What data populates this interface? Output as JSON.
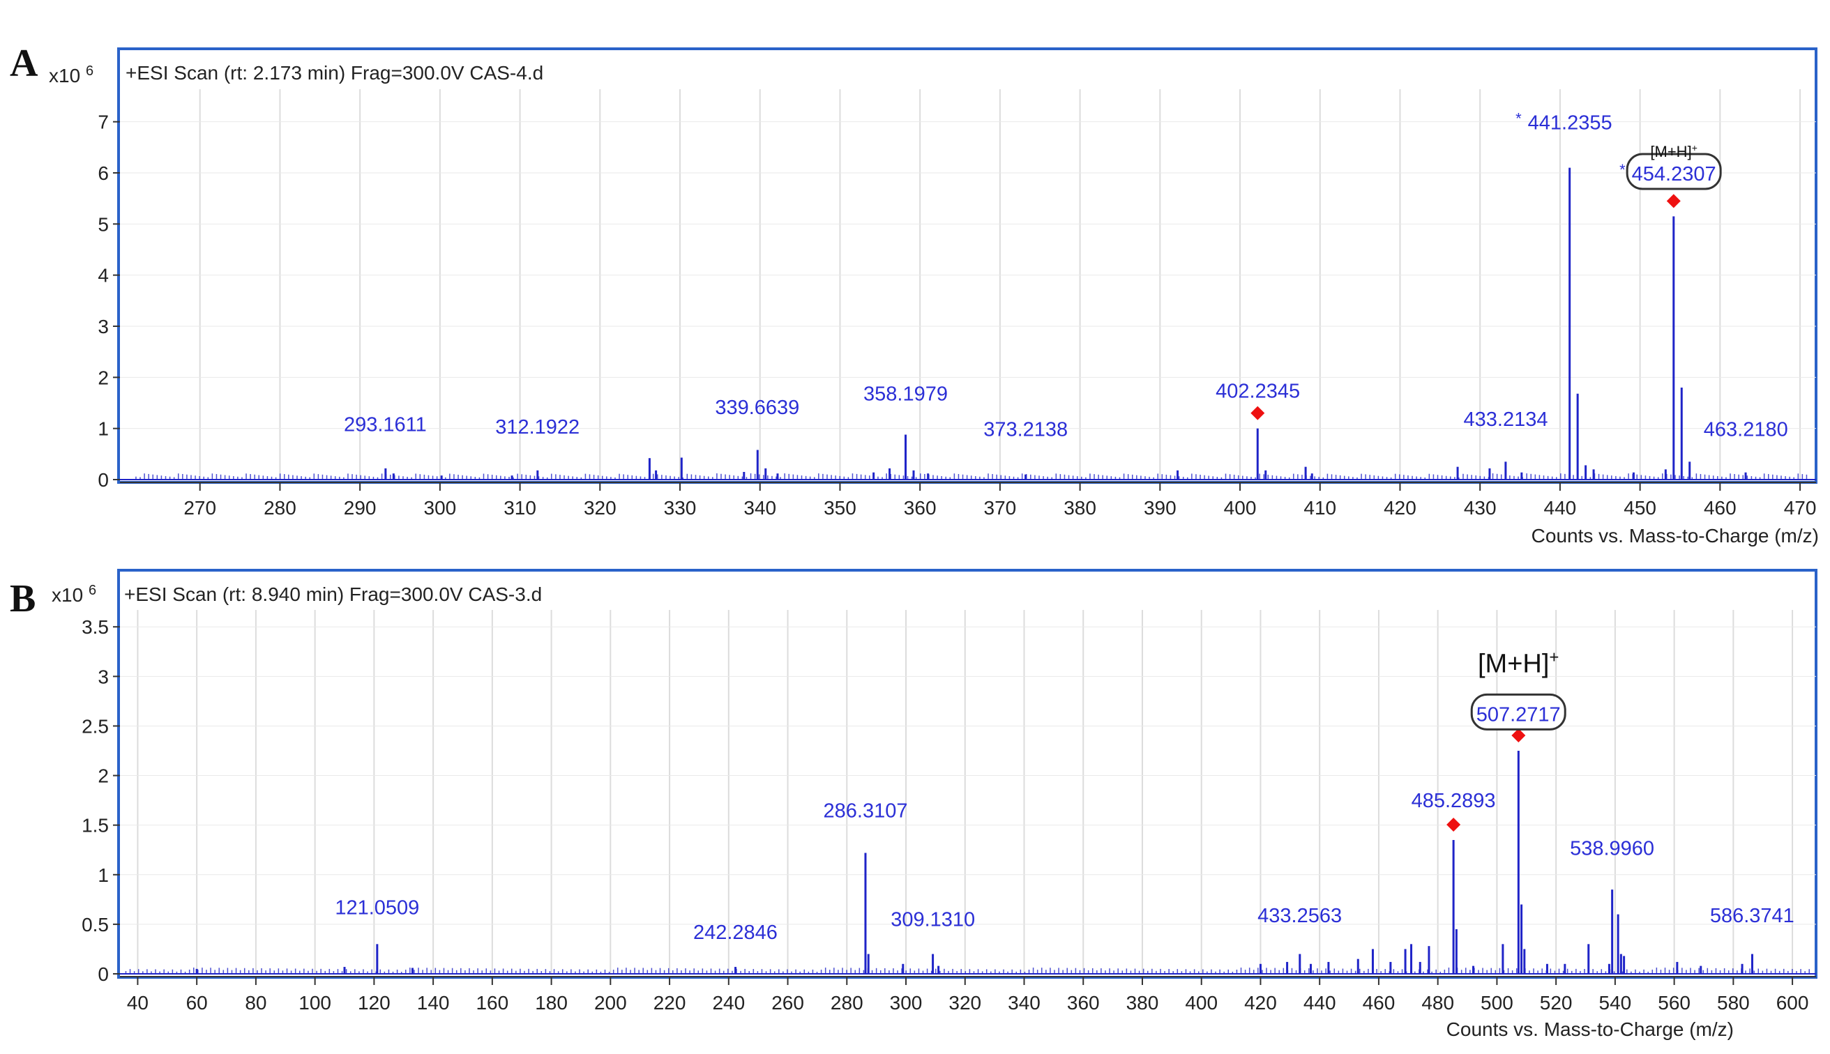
{
  "colors": {
    "frame": "#2a62c9",
    "peak": "#1f24c8",
    "label": "#2b2fd6",
    "marker": "#ee1111",
    "grid": "#dcdcdc",
    "text": "#222222"
  },
  "chart_data": [
    {
      "panel_letter": "A",
      "type": "bar",
      "title": "+ESI Scan (rt: 2.173 min) Frag=300.0V CAS-4.d",
      "ylabel_exponent": "x10 6",
      "xlabel": "Counts vs. Mass-to-Charge (m/z)",
      "xlim": [
        260,
        472
      ],
      "ylim": [
        0,
        7.5
      ],
      "xticks": [
        270,
        280,
        290,
        300,
        310,
        320,
        330,
        340,
        350,
        360,
        370,
        380,
        390,
        400,
        410,
        420,
        430,
        440,
        450,
        460,
        470
      ],
      "yticks": [
        0,
        1,
        2,
        3,
        4,
        5,
        6,
        7
      ],
      "grid": true,
      "peaks": [
        {
          "mz": 293.2,
          "i": 0.22
        },
        {
          "mz": 294.2,
          "i": 0.12
        },
        {
          "mz": 300.2,
          "i": 0.08
        },
        {
          "mz": 309.0,
          "i": 0.08
        },
        {
          "mz": 312.2,
          "i": 0.18
        },
        {
          "mz": 326.2,
          "i": 0.42
        },
        {
          "mz": 327.0,
          "i": 0.18
        },
        {
          "mz": 330.2,
          "i": 0.43
        },
        {
          "mz": 338.0,
          "i": 0.15
        },
        {
          "mz": 339.7,
          "i": 0.58
        },
        {
          "mz": 340.7,
          "i": 0.22
        },
        {
          "mz": 342.2,
          "i": 0.12
        },
        {
          "mz": 354.2,
          "i": 0.14
        },
        {
          "mz": 356.2,
          "i": 0.22
        },
        {
          "mz": 358.2,
          "i": 0.88
        },
        {
          "mz": 359.2,
          "i": 0.18
        },
        {
          "mz": 361.0,
          "i": 0.12
        },
        {
          "mz": 373.2,
          "i": 0.1
        },
        {
          "mz": 392.2,
          "i": 0.18
        },
        {
          "mz": 402.2,
          "i": 1.0
        },
        {
          "mz": 403.2,
          "i": 0.18
        },
        {
          "mz": 408.2,
          "i": 0.25
        },
        {
          "mz": 409.0,
          "i": 0.12
        },
        {
          "mz": 427.2,
          "i": 0.25
        },
        {
          "mz": 431.2,
          "i": 0.22
        },
        {
          "mz": 433.2,
          "i": 0.35
        },
        {
          "mz": 435.2,
          "i": 0.14
        },
        {
          "mz": 441.2,
          "i": 6.1
        },
        {
          "mz": 442.2,
          "i": 1.68
        },
        {
          "mz": 443.2,
          "i": 0.28
        },
        {
          "mz": 444.2,
          "i": 0.2
        },
        {
          "mz": 449.2,
          "i": 0.14
        },
        {
          "mz": 453.2,
          "i": 0.2
        },
        {
          "mz": 454.2,
          "i": 5.15
        },
        {
          "mz": 455.2,
          "i": 1.8
        },
        {
          "mz": 456.2,
          "i": 0.35
        },
        {
          "mz": 463.2,
          "i": 0.14
        }
      ],
      "annotations": [
        {
          "text": "293.1611",
          "mz": 293.16,
          "i": 0.95
        },
        {
          "text": "312.1922",
          "mz": 312.19,
          "i": 0.9
        },
        {
          "text": "339.6639",
          "mz": 339.66,
          "i": 1.28
        },
        {
          "text": "358.1979",
          "mz": 358.2,
          "i": 1.55
        },
        {
          "text": "373.2138",
          "mz": 373.21,
          "i": 0.85
        },
        {
          "text": "402.2345",
          "mz": 402.23,
          "i": 1.6
        },
        {
          "text": "433.2134",
          "mz": 433.21,
          "i": 1.05
        },
        {
          "text": "441.2355",
          "mz": 441.24,
          "i": 6.85,
          "star": true
        },
        {
          "text": "454.2307",
          "mz": 454.23,
          "i": 5.85,
          "star": true,
          "boxed": true,
          "tag": "[M+H]+"
        },
        {
          "text": "463.2180",
          "mz": 463.22,
          "i": 0.85
        }
      ],
      "markers": [
        402.2345,
        454.2307
      ]
    },
    {
      "panel_letter": "B",
      "type": "bar",
      "title": "+ESI Scan (rt: 8.940 min) Frag=300.0V CAS-3.d",
      "ylabel_exponent": "x10 6",
      "xlabel": "Counts vs. Mass-to-Charge (m/z)",
      "xlim": [
        34,
        608
      ],
      "ylim": [
        0,
        3.6
      ],
      "xticks": [
        40,
        60,
        80,
        100,
        120,
        140,
        160,
        180,
        200,
        220,
        240,
        260,
        280,
        300,
        320,
        340,
        360,
        380,
        400,
        420,
        440,
        460,
        480,
        500,
        520,
        540,
        560,
        580,
        600
      ],
      "yticks": [
        0,
        0.5,
        1,
        1.5,
        2,
        2.5,
        3,
        3.5
      ],
      "yticklabels": [
        "0",
        "0.5",
        "1",
        "1.5",
        "2",
        "2.5",
        "3",
        "3.5"
      ],
      "grid": true,
      "peaks": [
        {
          "mz": 60.0,
          "i": 0.05
        },
        {
          "mz": 110.0,
          "i": 0.07
        },
        {
          "mz": 121.05,
          "i": 0.3
        },
        {
          "mz": 133.0,
          "i": 0.06
        },
        {
          "mz": 242.3,
          "i": 0.07
        },
        {
          "mz": 286.3,
          "i": 1.22
        },
        {
          "mz": 287.3,
          "i": 0.2
        },
        {
          "mz": 299.0,
          "i": 0.1
        },
        {
          "mz": 309.1,
          "i": 0.2
        },
        {
          "mz": 311.0,
          "i": 0.08
        },
        {
          "mz": 420.0,
          "i": 0.1
        },
        {
          "mz": 429.0,
          "i": 0.12
        },
        {
          "mz": 433.3,
          "i": 0.2
        },
        {
          "mz": 437.0,
          "i": 0.1
        },
        {
          "mz": 443.0,
          "i": 0.12
        },
        {
          "mz": 453.0,
          "i": 0.15
        },
        {
          "mz": 458.0,
          "i": 0.25
        },
        {
          "mz": 464.0,
          "i": 0.12
        },
        {
          "mz": 469.0,
          "i": 0.25
        },
        {
          "mz": 471.0,
          "i": 0.3
        },
        {
          "mz": 474.0,
          "i": 0.12
        },
        {
          "mz": 477.0,
          "i": 0.28
        },
        {
          "mz": 485.3,
          "i": 1.35
        },
        {
          "mz": 486.3,
          "i": 0.45
        },
        {
          "mz": 492.0,
          "i": 0.08
        },
        {
          "mz": 502.0,
          "i": 0.3
        },
        {
          "mz": 507.3,
          "i": 2.25
        },
        {
          "mz": 508.3,
          "i": 0.7
        },
        {
          "mz": 509.3,
          "i": 0.25
        },
        {
          "mz": 517.0,
          "i": 0.1
        },
        {
          "mz": 523.0,
          "i": 0.1
        },
        {
          "mz": 531.0,
          "i": 0.3
        },
        {
          "mz": 538.0,
          "i": 0.1
        },
        {
          "mz": 539.0,
          "i": 0.85
        },
        {
          "mz": 541.0,
          "i": 0.6
        },
        {
          "mz": 542.0,
          "i": 0.2
        },
        {
          "mz": 543.0,
          "i": 0.18
        },
        {
          "mz": 561.0,
          "i": 0.12
        },
        {
          "mz": 569.0,
          "i": 0.08
        },
        {
          "mz": 583.0,
          "i": 0.1
        },
        {
          "mz": 586.4,
          "i": 0.2
        }
      ],
      "annotations": [
        {
          "text": "121.0509",
          "mz": 121.05,
          "i": 0.6
        },
        {
          "text": "242.2846",
          "mz": 242.28,
          "i": 0.35
        },
        {
          "text": "286.3107",
          "mz": 286.31,
          "i": 1.58
        },
        {
          "text": "309.1310",
          "mz": 309.13,
          "i": 0.48
        },
        {
          "text": "433.2563",
          "mz": 433.26,
          "i": 0.52
        },
        {
          "text": "485.2893",
          "mz": 485.29,
          "i": 1.68
        },
        {
          "text": "507.2717",
          "mz": 507.27,
          "i": 2.55,
          "boxed": true,
          "tag": "[M+H]+"
        },
        {
          "text": "538.9960",
          "mz": 538.99,
          "i": 1.2
        },
        {
          "text": "586.3741",
          "mz": 586.37,
          "i": 0.52
        }
      ],
      "markers": [
        485.2893,
        507.2717
      ]
    }
  ]
}
